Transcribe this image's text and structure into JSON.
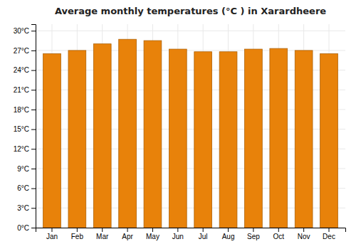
{
  "chart_data": {
    "type": "bar",
    "title": "Average monthly temperatures (°C ) in Xarardheere",
    "categories": [
      "Jan",
      "Feb",
      "Mar",
      "Apr",
      "May",
      "Jun",
      "Jul",
      "Aug",
      "Sep",
      "Oct",
      "Nov",
      "Dec"
    ],
    "values": [
      26.5,
      27.0,
      28.0,
      28.7,
      28.5,
      27.2,
      26.8,
      26.8,
      27.2,
      27.3,
      27.0,
      26.5
    ],
    "color": "#E8820A",
    "ylim": [
      0,
      31
    ],
    "yticks": [
      {
        "value": 0,
        "label": "0°C"
      },
      {
        "value": 3,
        "label": "3°C"
      },
      {
        "value": 6,
        "label": "6°C"
      },
      {
        "value": 9,
        "label": "9°C"
      },
      {
        "value": 12,
        "label": "12°C"
      },
      {
        "value": 15,
        "label": "15°C"
      },
      {
        "value": 18,
        "label": "18°C"
      },
      {
        "value": 21,
        "label": "21°C"
      },
      {
        "value": 24,
        "label": "24°C"
      },
      {
        "value": 27,
        "label": "27°C"
      },
      {
        "value": 30,
        "label": "30°C"
      }
    ],
    "grid": true
  }
}
